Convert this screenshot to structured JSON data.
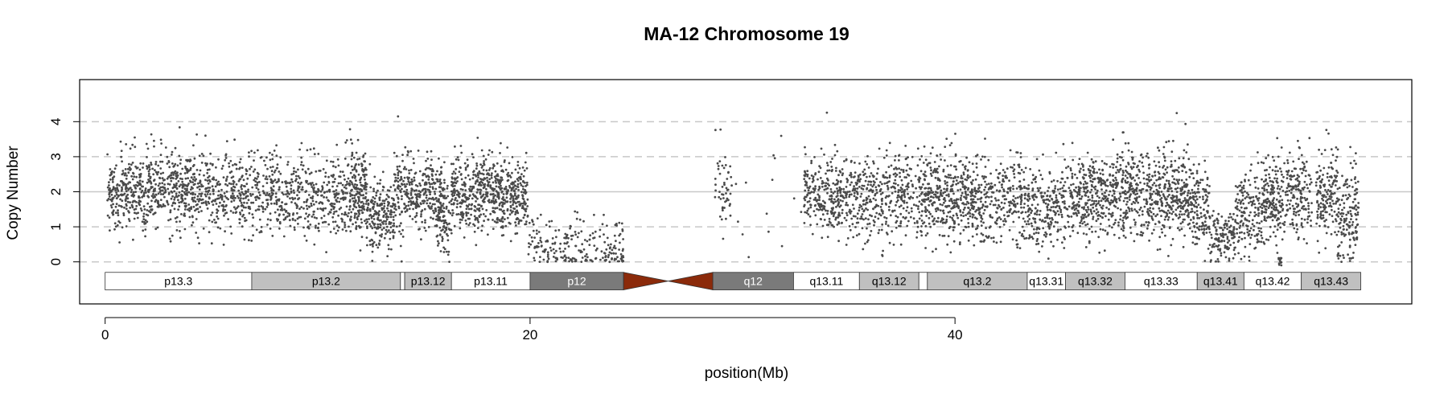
{
  "chart_data": {
    "type": "scatter",
    "title": "MA-12  Chromosome 19",
    "xlabel": "position(Mb)",
    "ylabel": "Copy Number",
    "xlim": [
      -1.2,
      61.5
    ],
    "ylim": [
      -1.2,
      5.2
    ],
    "x_ticks": [
      0,
      20,
      40
    ],
    "y_ticks": [
      0,
      1,
      2,
      3,
      4
    ],
    "dashed_gridlines_y": [
      0,
      1,
      3,
      4
    ],
    "reference_line_y": 2,
    "point_color": "#4a4a4a",
    "segments": [
      {
        "start": 0.1,
        "end": 2.5,
        "mean": 2.0,
        "sd": 0.55,
        "n": 340
      },
      {
        "start": 2.5,
        "end": 5.0,
        "mean": 2.0,
        "sd": 0.55,
        "n": 340
      },
      {
        "start": 5.0,
        "end": 8.0,
        "mean": 1.95,
        "sd": 0.55,
        "n": 330
      },
      {
        "start": 8.0,
        "end": 11.5,
        "mean": 1.9,
        "sd": 0.6,
        "n": 380
      },
      {
        "start": 11.5,
        "end": 12.3,
        "mean": 2.0,
        "sd": 0.6,
        "n": 180
      },
      {
        "start": 12.3,
        "end": 13.6,
        "mean": 1.3,
        "sd": 0.45,
        "n": 200
      },
      {
        "start": 13.6,
        "end": 14.6,
        "mean": 2.0,
        "sd": 0.6,
        "n": 140
      },
      {
        "start": 14.6,
        "end": 16.0,
        "mean": 1.85,
        "sd": 0.55,
        "n": 200
      },
      {
        "start": 15.6,
        "end": 16.3,
        "mean": 1.2,
        "sd": 0.5,
        "n": 80
      },
      {
        "start": 16.3,
        "end": 19.9,
        "mean": 1.95,
        "sd": 0.5,
        "n": 620
      },
      {
        "start": 19.9,
        "end": 24.4,
        "mean": 0.4,
        "sd": 0.4,
        "n": 230
      },
      {
        "start": 28.7,
        "end": 29.5,
        "mean": 2.1,
        "sd": 0.6,
        "n": 50
      },
      {
        "start": 29.5,
        "end": 32.8,
        "mean": 2.0,
        "sd": 1.2,
        "n": 14
      },
      {
        "start": 32.9,
        "end": 34.1,
        "mean": 1.9,
        "sd": 0.55,
        "n": 150
      },
      {
        "start": 34.1,
        "end": 38.0,
        "mean": 1.85,
        "sd": 0.6,
        "n": 480
      },
      {
        "start": 38.0,
        "end": 38.3,
        "mean": 1.8,
        "sd": 0.6,
        "n": 20
      },
      {
        "start": 38.3,
        "end": 40.5,
        "mean": 1.9,
        "sd": 0.6,
        "n": 340
      },
      {
        "start": 40.5,
        "end": 43.2,
        "mean": 1.8,
        "sd": 0.6,
        "n": 340
      },
      {
        "start": 43.2,
        "end": 45.0,
        "mean": 1.55,
        "sd": 0.55,
        "n": 220
      },
      {
        "start": 45.0,
        "end": 47.5,
        "mean": 1.85,
        "sd": 0.6,
        "n": 360
      },
      {
        "start": 47.5,
        "end": 51.0,
        "mean": 1.95,
        "sd": 0.6,
        "n": 560
      },
      {
        "start": 51.0,
        "end": 52.0,
        "mean": 1.6,
        "sd": 0.55,
        "n": 150
      },
      {
        "start": 52.0,
        "end": 53.2,
        "mean": 0.75,
        "sd": 0.35,
        "n": 130
      },
      {
        "start": 53.2,
        "end": 54.5,
        "mean": 1.45,
        "sd": 0.6,
        "n": 170
      },
      {
        "start": 54.5,
        "end": 56.8,
        "mean": 1.9,
        "sd": 0.6,
        "n": 340
      },
      {
        "start": 57.0,
        "end": 58.0,
        "mean": 1.85,
        "sd": 0.6,
        "n": 150
      },
      {
        "start": 58.0,
        "end": 59.0,
        "mean": 1.3,
        "sd": 0.7,
        "n": 150
      }
    ],
    "dips": [
      {
        "x": 55.3,
        "y": 0.0,
        "n": 12
      }
    ],
    "ideogram": {
      "y_center": -0.55,
      "band_height": 0.5,
      "centromere_color": "#8b2a0a",
      "bands": [
        {
          "name": "p13.3",
          "start": 0.0,
          "end": 6.9,
          "stain": "#ffffff",
          "text": "#000000"
        },
        {
          "name": "p13.2",
          "start": 6.9,
          "end": 13.9,
          "stain": "#c0c0c0",
          "text": "#000000"
        },
        {
          "name": "",
          "start": 13.9,
          "end": 14.1,
          "stain": "#ffffff",
          "text": "#000000"
        },
        {
          "name": "p13.12",
          "start": 14.1,
          "end": 16.3,
          "stain": "#c0c0c0",
          "text": "#000000"
        },
        {
          "name": "p13.11",
          "start": 16.3,
          "end": 20.0,
          "stain": "#ffffff",
          "text": "#000000"
        },
        {
          "name": "p12",
          "start": 20.0,
          "end": 24.4,
          "stain": "#7a7a7a",
          "text": "#ffffff"
        },
        {
          "name": "q12",
          "start": 28.6,
          "end": 32.4,
          "stain": "#7a7a7a",
          "text": "#ffffff"
        },
        {
          "name": "q13.11",
          "start": 32.4,
          "end": 35.5,
          "stain": "#ffffff",
          "text": "#000000"
        },
        {
          "name": "q13.12",
          "start": 35.5,
          "end": 38.3,
          "stain": "#c0c0c0",
          "text": "#000000"
        },
        {
          "name": "",
          "start": 38.3,
          "end": 38.7,
          "stain": "#ffffff",
          "text": "#000000"
        },
        {
          "name": "q13.2",
          "start": 38.7,
          "end": 43.4,
          "stain": "#c0c0c0",
          "text": "#000000"
        },
        {
          "name": "q13.31",
          "start": 43.4,
          "end": 45.2,
          "stain": "#ffffff",
          "text": "#000000"
        },
        {
          "name": "q13.32",
          "start": 45.2,
          "end": 48.0,
          "stain": "#c0c0c0",
          "text": "#000000"
        },
        {
          "name": "q13.33",
          "start": 48.0,
          "end": 51.4,
          "stain": "#ffffff",
          "text": "#000000"
        },
        {
          "name": "q13.41",
          "start": 51.4,
          "end": 53.6,
          "stain": "#c0c0c0",
          "text": "#000000"
        },
        {
          "name": "q13.42",
          "start": 53.6,
          "end": 56.3,
          "stain": "#ffffff",
          "text": "#000000"
        },
        {
          "name": "q13.43",
          "start": 56.3,
          "end": 59.1,
          "stain": "#c0c0c0",
          "text": "#000000"
        }
      ],
      "centromere": {
        "start": 24.4,
        "end": 28.6
      }
    }
  }
}
